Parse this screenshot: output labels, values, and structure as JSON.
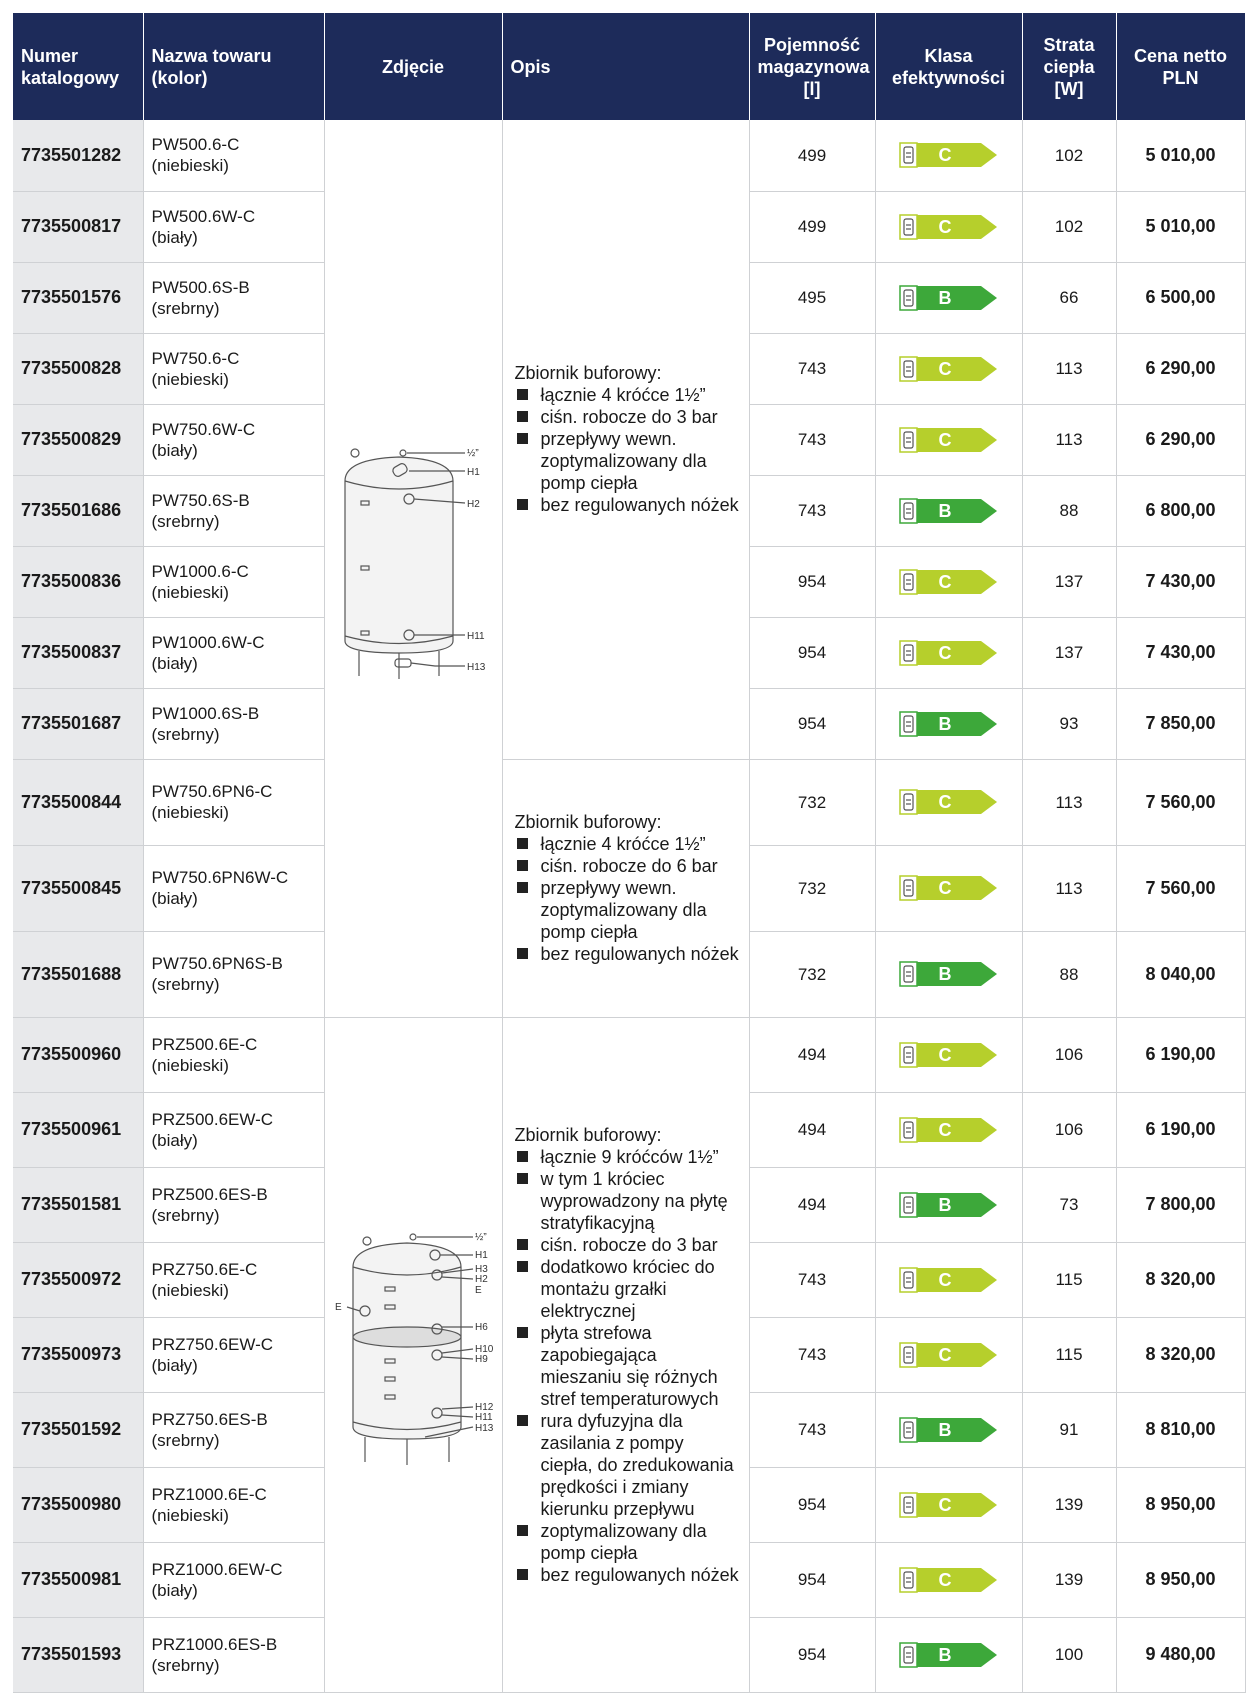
{
  "table": {
    "headers": [
      "Numer katalogowy",
      "Nazwa towaru (kolor)",
      "Zdjęcie",
      "Opis",
      "Pojemność magazynowa [l]",
      "Klasa efektywności",
      "Strata ciepła [W]",
      "Cena netto PLN"
    ],
    "rows": [
      [
        "7735501282",
        "PW500.6-C",
        "(niebieski)",
        499,
        "C",
        102,
        "5 010,00"
      ],
      [
        "7735500817",
        "PW500.6W-C",
        "(biały)",
        499,
        "C",
        102,
        "5 010,00"
      ],
      [
        "7735501576",
        "PW500.6S-B",
        "(srebrny)",
        495,
        "B",
        66,
        "6 500,00"
      ],
      [
        "7735500828",
        "PW750.6-C",
        "(niebieski)",
        743,
        "C",
        113,
        "6 290,00"
      ],
      [
        "7735500829",
        "PW750.6W-C",
        "(biały)",
        743,
        "C",
        113,
        "6 290,00"
      ],
      [
        "7735501686",
        "PW750.6S-B",
        "(srebrny)",
        743,
        "B",
        88,
        "6 800,00"
      ],
      [
        "7735500836",
        "PW1000.6-C",
        "(niebieski)",
        954,
        "C",
        137,
        "7 430,00"
      ],
      [
        "7735500837",
        "PW1000.6W-C",
        "(biały)",
        954,
        "C",
        137,
        "7 430,00"
      ],
      [
        "7735501687",
        "PW1000.6S-B",
        "(srebrny)",
        954,
        "B",
        93,
        "7 850,00"
      ],
      [
        "7735500844",
        "PW750.6PN6-C",
        "(niebieski)",
        732,
        "C",
        113,
        "7 560,00"
      ],
      [
        "7735500845",
        "PW750.6PN6W-C",
        "(biały)",
        732,
        "C",
        113,
        "7 560,00"
      ],
      [
        "7735501688",
        "PW750.6PN6S-B",
        "(srebrny)",
        732,
        "B",
        88,
        "8 040,00"
      ],
      [
        "7735500960",
        "PRZ500.6E-C",
        "(niebieski)",
        494,
        "C",
        106,
        "6 190,00"
      ],
      [
        "7735500961",
        "PRZ500.6EW-C",
        "(biały)",
        494,
        "C",
        106,
        "6 190,00"
      ],
      [
        "7735501581",
        "PRZ500.6ES-B",
        "(srebrny)",
        494,
        "B",
        73,
        "7 800,00"
      ],
      [
        "7735500972",
        "PRZ750.6E-C",
        "(niebieski)",
        743,
        "C",
        115,
        "8 320,00"
      ],
      [
        "7735500973",
        "PRZ750.6EW-C",
        "(biały)",
        743,
        "C",
        115,
        "8 320,00"
      ],
      [
        "7735501592",
        "PRZ750.6ES-B",
        "(srebrny)",
        743,
        "B",
        91,
        "8 810,00"
      ],
      [
        "7735500980",
        "PRZ1000.6E-C",
        "(niebieski)",
        954,
        "C",
        139,
        "8 950,00"
      ],
      [
        "7735500981",
        "PRZ1000.6EW-C",
        "(biały)",
        954,
        "C",
        139,
        "8 950,00"
      ],
      [
        "7735501593",
        "PRZ1000.6ES-B",
        "(srebrny)",
        954,
        "B",
        100,
        "9 480,00"
      ]
    ],
    "descriptions": [
      {
        "intro": "Zbiornik buforowy:",
        "items": [
          "łącznie 4 króćce 1½”",
          "ciśn. robocze do 3 bar",
          "przepływy wewn. zoptymalizowany dla pomp ciepła",
          "bez regulowanych nóżek"
        ]
      },
      {
        "intro": "Zbiornik buforowy:",
        "items": [
          "łącznie 4 króćce 1½”",
          "ciśn. robocze do 6 bar",
          "przepływy wewn. zoptymalizowany dla pomp ciepła",
          "bez regulowanych nóżek"
        ]
      },
      {
        "intro": "Zbiornik buforowy:",
        "items": [
          "łącznie 9 króćców 1½”",
          "w tym 1 króciec wyprowadzony na płytę stratyfikacyjną",
          "ciśn. robocze do 3 bar",
          "dodatkowo króciec do montażu grzałki elektrycznej",
          "płyta strefowa zapobiegająca mieszaniu się różnych stref temperaturowych",
          "rura dyfuzyjna dla zasilania z pompy ciepła, do zredukowania prędkości i zmiany kierunku przepływu",
          "zoptymalizowany dla pomp ciepła",
          "bez regulowanych nóżek"
        ]
      }
    ],
    "images": [
      {
        "labels": [
          "½”",
          "H1",
          "H2",
          "H11",
          "H13"
        ]
      },
      {
        "labels": [
          "½”",
          "H1",
          "H3",
          "H2",
          "E",
          "E",
          "H6",
          "H10",
          "H9",
          "H12",
          "H11",
          "H13"
        ]
      }
    ]
  }
}
